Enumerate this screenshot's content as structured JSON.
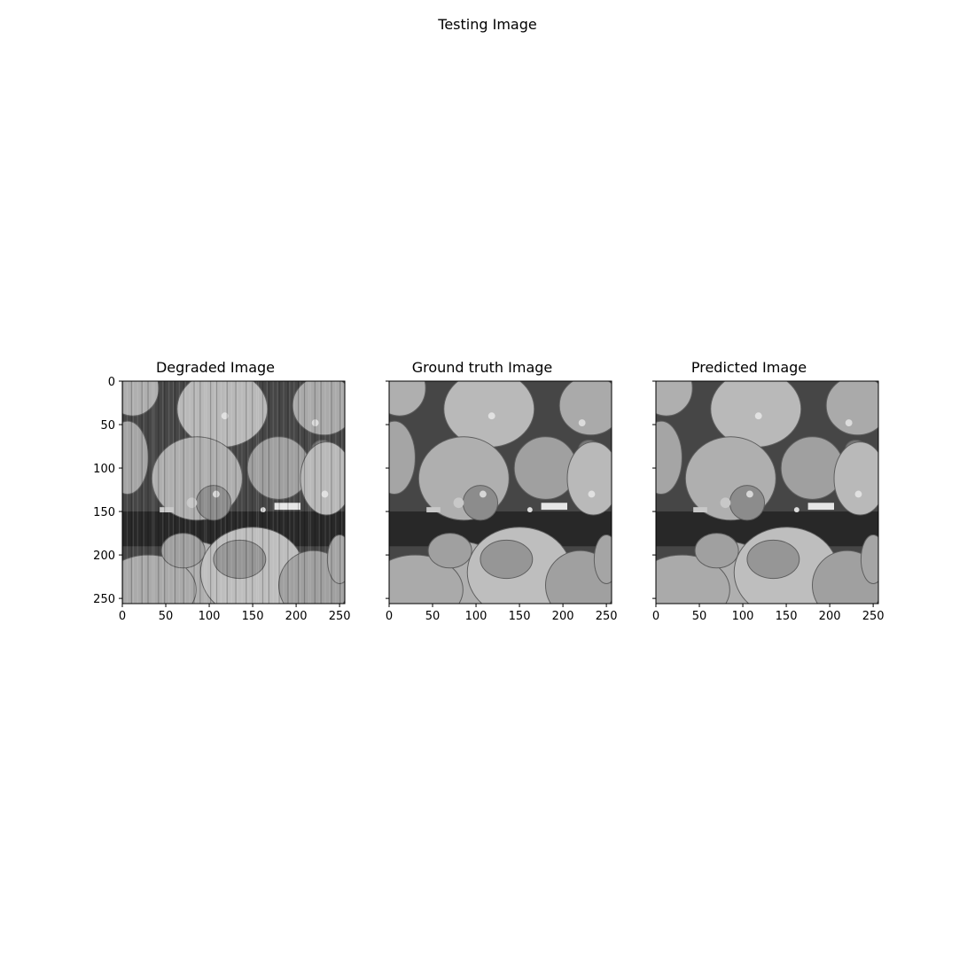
{
  "figure": {
    "title": "Testing Image"
  },
  "panels": [
    {
      "title": "Degraded Image",
      "show_yticklabels": true,
      "stripes": true
    },
    {
      "title": "Ground truth Image",
      "show_yticklabels": false,
      "stripes": false
    },
    {
      "title": "Predicted Image",
      "show_yticklabels": false,
      "stripes": false
    }
  ],
  "axes": {
    "xticks": [
      "0",
      "50",
      "100",
      "150",
      "200",
      "250"
    ],
    "yticks": [
      "0",
      "50",
      "100",
      "150",
      "200",
      "250"
    ],
    "xlim": [
      0,
      256
    ],
    "ylim": [
      256,
      0
    ]
  },
  "colormap": "gray"
}
